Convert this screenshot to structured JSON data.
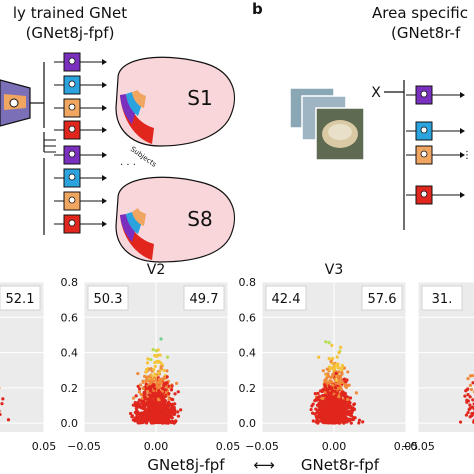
{
  "panel_a": {
    "title_line1": "ly trained GNet",
    "title_line2": "(GNet8j-fpf)",
    "subject_first": "S1",
    "subject_last": "S8",
    "subjects_label": "Subjects"
  },
  "panel_b": {
    "letter": "b",
    "title_line1": "Area specific",
    "title_line2": "(GNet8r-f",
    "input_symbol": "X"
  },
  "bottom_axis": {
    "left_label": "GNet8j-fpf",
    "arrow": "⟷",
    "right_label": "GNet8r-fpf"
  },
  "chart_data": [
    {
      "type": "scatter",
      "title": "",
      "left_value": "",
      "right_value": "52.1",
      "xlim": [
        -0.05,
        0.05
      ],
      "ylim": [
        -0.05,
        0.8
      ],
      "xticks": [
        "",
        "0.05"
      ],
      "yticks": [],
      "cropped": "left"
    },
    {
      "type": "scatter",
      "title": "V2",
      "left_value": "50.3",
      "right_value": "49.7",
      "xlim": [
        -0.05,
        0.05
      ],
      "ylim": [
        -0.05,
        0.8
      ],
      "xticks": [
        "−0.05",
        "0.00",
        "0.05"
      ],
      "yticks": [
        "0.0",
        "0.2",
        "0.4",
        "0.6",
        "0.8"
      ]
    },
    {
      "type": "scatter",
      "title": "V3",
      "left_value": "42.4",
      "right_value": "57.6",
      "xlim": [
        -0.05,
        0.05
      ],
      "ylim": [
        -0.05,
        0.8
      ],
      "xticks": [
        "−0.05",
        "0.00",
        "0.05"
      ],
      "yticks": [
        "0.0",
        "0.2",
        "0.4",
        "0.6",
        "0.8"
      ]
    },
    {
      "type": "scatter",
      "title": "",
      "left_value": "31.",
      "right_value": "",
      "xlim": [
        -0.05,
        0.05
      ],
      "ylim": [
        -0.05,
        0.8
      ],
      "xticks": [
        "−0.05"
      ],
      "yticks": [],
      "cropped": "right"
    }
  ],
  "colors": {
    "purple": "#7b2fbe",
    "blue": "#2aa3de",
    "orange": "#f0a561",
    "red": "#e0261d",
    "brain_fill": "#f8d6da",
    "panel_bg": "#ebebeb"
  }
}
